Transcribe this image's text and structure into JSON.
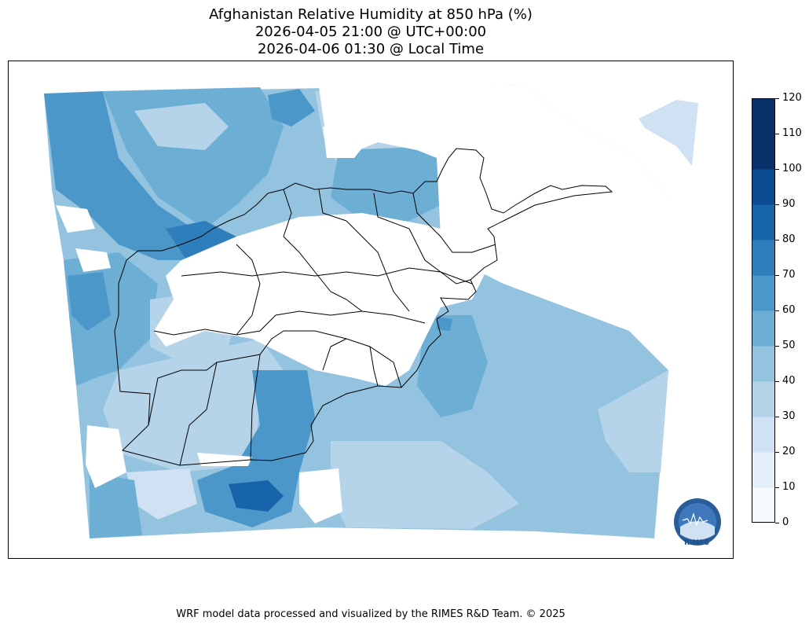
{
  "title": {
    "line1": "Afghanistan Relative Humidity at 850 hPa (%)",
    "line2": "2026-04-05 21:00 @ UTC+00:00",
    "line3": "2026-04-06 01:30 @ Local Time"
  },
  "colorbar": {
    "ticks": [
      "120",
      "110",
      "100",
      "90",
      "80",
      "70",
      "60",
      "50",
      "40",
      "30",
      "20",
      "10",
      "0"
    ],
    "levels": [
      0,
      10,
      20,
      30,
      40,
      50,
      60,
      70,
      80,
      90,
      100,
      110,
      120
    ],
    "colors": [
      "#f7fbff",
      "#e3eef8",
      "#cfe1f2",
      "#b5d4e9",
      "#93c3df",
      "#6daed5",
      "#4b97c9",
      "#2f7ebc",
      "#1864aa",
      "#0a4a90",
      "#08306b",
      "#08306b"
    ]
  },
  "map": {
    "region": "Afghanistan",
    "fill_colors": {
      "very_light": "#cfe1f2",
      "light": "#b5d4e9",
      "medium": "#93c3df",
      "mid_dark": "#6daed5",
      "dark": "#4b97c9",
      "darker": "#2f7ebc",
      "darkest": "#1864aa"
    }
  },
  "logo": {
    "text": "RIMES"
  },
  "footer": "WRF model data processed and visualized by the RIMES R&D Team. © 2025"
}
